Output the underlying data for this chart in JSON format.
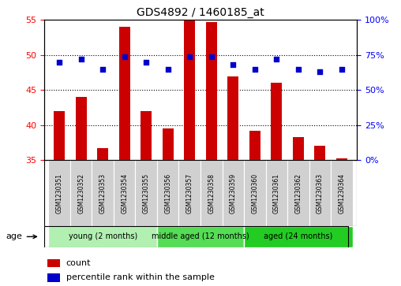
{
  "title": "GDS4892 / 1460185_at",
  "samples": [
    "GSM1230351",
    "GSM1230352",
    "GSM1230353",
    "GSM1230354",
    "GSM1230355",
    "GSM1230356",
    "GSM1230357",
    "GSM1230358",
    "GSM1230359",
    "GSM1230360",
    "GSM1230361",
    "GSM1230362",
    "GSM1230363",
    "GSM1230364"
  ],
  "counts": [
    42.0,
    44.0,
    36.7,
    54.0,
    42.0,
    39.5,
    55.2,
    54.7,
    47.0,
    39.2,
    46.0,
    38.3,
    37.0,
    35.3
  ],
  "percentiles_pct": [
    70.0,
    72.0,
    65.0,
    74.0,
    70.0,
    65.0,
    74.0,
    74.0,
    68.0,
    65.0,
    72.0,
    65.0,
    63.0,
    65.0
  ],
  "ylim_left": [
    35,
    55
  ],
  "ylim_right": [
    0,
    100
  ],
  "yticks_left": [
    35,
    40,
    45,
    50,
    55
  ],
  "yticks_right": [
    0,
    25,
    50,
    75,
    100
  ],
  "ytick_labels_right": [
    "0%",
    "25%",
    "50%",
    "75%",
    "100%"
  ],
  "group_labels": [
    "young (2 months)",
    "middle aged (12 months)",
    "aged (24 months)"
  ],
  "group_starts": [
    0,
    5,
    9
  ],
  "group_ends": [
    4,
    8,
    13
  ],
  "group_colors": [
    "#b2f0b2",
    "#55dd55",
    "#22cc22"
  ],
  "bar_color": "#CC0000",
  "dot_color": "#0000CC",
  "bar_bottom": 35,
  "bar_width": 0.5,
  "legend_count_color": "#CC0000",
  "legend_dot_color": "#0000CC",
  "grid_dotted_at": [
    40,
    45,
    50
  ],
  "xlabel_box_color": "#d0d0d0",
  "xlabel_box_edge": "#ffffff"
}
